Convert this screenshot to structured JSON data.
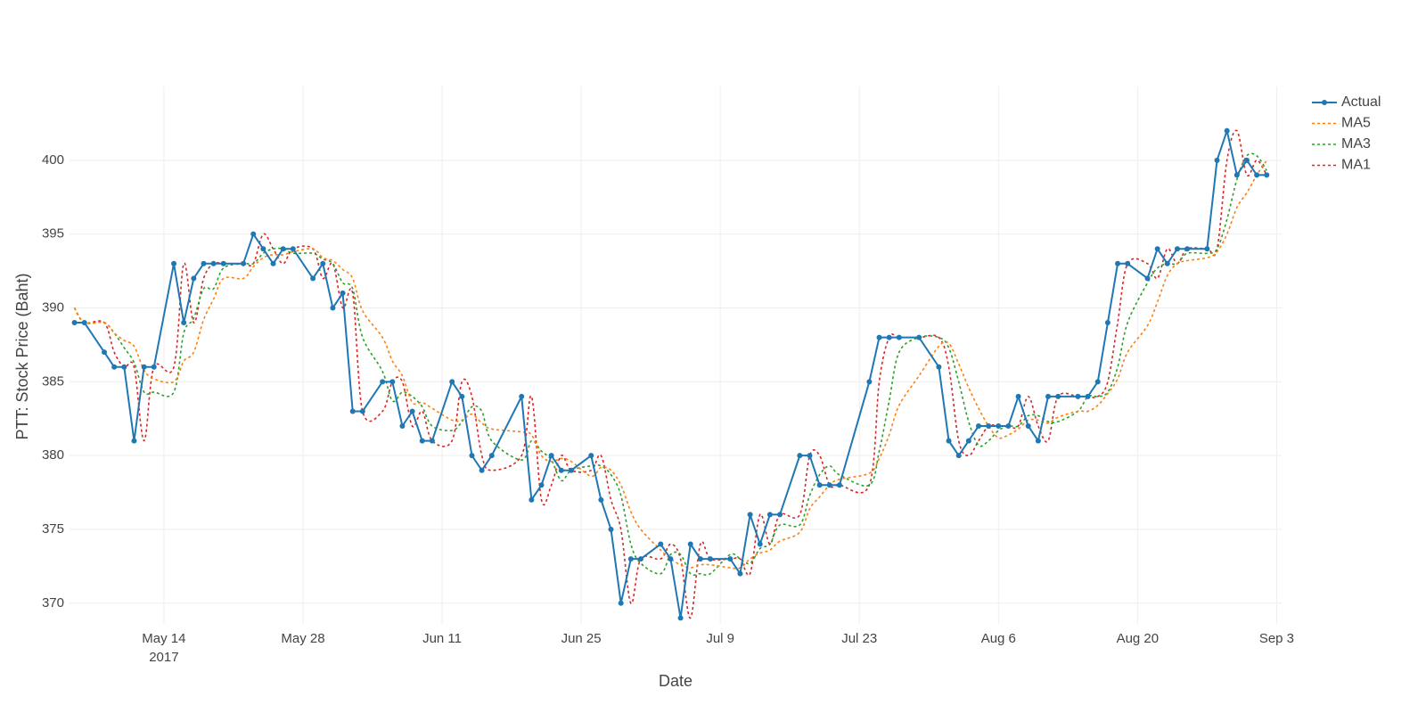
{
  "chart_data": {
    "type": "line",
    "xlabel": "Date",
    "ylabel": "PTT: Stock Price (Baht)",
    "x": [
      "2017-05-05",
      "2017-05-06",
      "2017-05-08",
      "2017-05-09",
      "2017-05-10",
      "2017-05-11",
      "2017-05-12",
      "2017-05-13",
      "2017-05-15",
      "2017-05-16",
      "2017-05-17",
      "2017-05-18",
      "2017-05-19",
      "2017-05-20",
      "2017-05-22",
      "2017-05-23",
      "2017-05-24",
      "2017-05-25",
      "2017-05-26",
      "2017-05-27",
      "2017-05-29",
      "2017-05-30",
      "2017-05-31",
      "2017-06-01",
      "2017-06-02",
      "2017-06-03",
      "2017-06-05",
      "2017-06-06",
      "2017-06-07",
      "2017-06-08",
      "2017-06-09",
      "2017-06-10",
      "2017-06-12",
      "2017-06-13",
      "2017-06-14",
      "2017-06-15",
      "2017-06-16",
      "2017-06-19",
      "2017-06-20",
      "2017-06-21",
      "2017-06-22",
      "2017-06-23",
      "2017-06-24",
      "2017-06-26",
      "2017-06-27",
      "2017-06-28",
      "2017-06-29",
      "2017-06-30",
      "2017-07-01",
      "2017-07-03",
      "2017-07-04",
      "2017-07-05",
      "2017-07-06",
      "2017-07-07",
      "2017-07-08",
      "2017-07-10",
      "2017-07-11",
      "2017-07-12",
      "2017-07-13",
      "2017-07-14",
      "2017-07-15",
      "2017-07-17",
      "2017-07-18",
      "2017-07-19",
      "2017-07-20",
      "2017-07-21",
      "2017-07-24",
      "2017-07-25",
      "2017-07-26",
      "2017-07-27",
      "2017-07-29",
      "2017-07-31",
      "2017-08-01",
      "2017-08-02",
      "2017-08-03",
      "2017-08-04",
      "2017-08-05",
      "2017-08-06",
      "2017-08-07",
      "2017-08-08",
      "2017-08-09",
      "2017-08-10",
      "2017-08-11",
      "2017-08-12",
      "2017-08-14",
      "2017-08-15",
      "2017-08-16",
      "2017-08-17",
      "2017-08-18",
      "2017-08-19",
      "2017-08-21",
      "2017-08-22",
      "2017-08-23",
      "2017-08-24",
      "2017-08-25",
      "2017-08-27",
      "2017-08-28",
      "2017-08-29",
      "2017-08-30",
      "2017-08-31",
      "2017-09-01",
      "2017-09-02"
    ],
    "series": [
      {
        "name": "Actual",
        "color": "#1f77b4",
        "markers": true,
        "dash": false,
        "values": [
          389,
          389,
          387,
          386,
          386,
          381,
          386,
          386,
          393,
          389,
          392,
          393,
          393,
          393,
          393,
          395,
          394,
          393,
          394,
          394,
          392,
          393,
          390,
          391,
          383,
          383,
          385,
          385,
          382,
          383,
          381,
          381,
          385,
          384,
          380,
          379,
          380,
          384,
          377,
          378,
          380,
          379,
          379,
          380,
          377,
          375,
          370,
          373,
          373,
          374,
          373,
          369,
          374,
          373,
          373,
          373,
          372,
          376,
          374,
          376,
          376,
          380,
          380,
          378,
          378,
          378,
          385,
          388,
          388,
          388,
          388,
          386,
          381,
          380,
          381,
          382,
          382,
          382,
          382,
          384,
          382,
          381,
          384,
          384,
          384,
          384,
          385,
          389,
          393,
          393,
          392,
          394,
          393,
          394,
          394,
          394,
          400,
          402,
          399,
          400,
          399,
          399
        ]
      },
      {
        "name": "MA5",
        "color": "#ff7f0e",
        "markers": false,
        "dash": true,
        "values": [
          390,
          389,
          389,
          388.3,
          387.8,
          387.4,
          385.8,
          385.2,
          385,
          386.4,
          387,
          389.2,
          390.6,
          392,
          392,
          392.8,
          393.4,
          393.6,
          393.6,
          393.8,
          394,
          393.4,
          393.2,
          392.6,
          392,
          389.8,
          388,
          386.4,
          385.4,
          383.6,
          383.6,
          383.2,
          382.4,
          382.4,
          382.8,
          382.2,
          381.8,
          381.6,
          381.4,
          380,
          379.6,
          379.8,
          379.6,
          378.6,
          379.2,
          379,
          378,
          376.2,
          375,
          373.6,
          373,
          372.6,
          372.4,
          372.6,
          372.6,
          372.4,
          372.4,
          373,
          373.4,
          373.6,
          374.2,
          374.8,
          376.4,
          377.2,
          378,
          378.4,
          378.8,
          379.8,
          381.4,
          383.4,
          385.4,
          387.4,
          387.6,
          386.2,
          384.6,
          383.2,
          382,
          381.2,
          381.4,
          381.8,
          382.4,
          382.4,
          382.2,
          382.6,
          383,
          383,
          383.4,
          384.2,
          385.2,
          387,
          388.8,
          390.4,
          392.2,
          393,
          393.2,
          393.4,
          393.8,
          395,
          396.8,
          397.8,
          399,
          400
        ]
      },
      {
        "name": "MA3",
        "color": "#2ca02c",
        "markers": false,
        "dash": true,
        "values": [
          390,
          389,
          389,
          388.3,
          387.3,
          386.3,
          384.3,
          384.3,
          384.3,
          388.3,
          389.3,
          391.3,
          391.3,
          392.7,
          393,
          393,
          393.7,
          394,
          394,
          393.7,
          393.7,
          393.3,
          393,
          391.7,
          391.3,
          388,
          385.7,
          383.7,
          384.3,
          384,
          383.3,
          382,
          381.7,
          382.3,
          383.3,
          383,
          381,
          379.7,
          381,
          380.3,
          379.7,
          378.3,
          379,
          379.3,
          379.3,
          378.7,
          377.3,
          374,
          372.7,
          372,
          373.3,
          373.3,
          372,
          372,
          372,
          373.3,
          373,
          372.7,
          373.7,
          374,
          375.3,
          375.3,
          377.3,
          378.7,
          379.3,
          378.7,
          378,
          380.3,
          383.7,
          387,
          388,
          388,
          387.3,
          385,
          382.3,
          380.7,
          381,
          381.7,
          382,
          382,
          382.7,
          382.7,
          382.3,
          382.3,
          383,
          384,
          384,
          384.3,
          386,
          389,
          391.7,
          392.7,
          393,
          393,
          393.7,
          393.7,
          394,
          396,
          398.7,
          400.3,
          400.3,
          399.3
        ]
      },
      {
        "name": "MA1",
        "color": "#d62728",
        "markers": false,
        "dash": true,
        "values": [
          390,
          389,
          389,
          387,
          386,
          386,
          381,
          386,
          386,
          393,
          389,
          392,
          393,
          393,
          393,
          393,
          395,
          394,
          393,
          394,
          394,
          392,
          393,
          390,
          391,
          383,
          383,
          385,
          385,
          382,
          383,
          381,
          381,
          385,
          384,
          380,
          379,
          380,
          384,
          377,
          378,
          380,
          379,
          379,
          380,
          377,
          375,
          370,
          373,
          373,
          374,
          373,
          369,
          374,
          373,
          373,
          373,
          372,
          376,
          374,
          376,
          376,
          380,
          380,
          378,
          378,
          378,
          385,
          388,
          388,
          388,
          388,
          386,
          381,
          380,
          381,
          382,
          382,
          382,
          382,
          384,
          382,
          381,
          384,
          384,
          384,
          384,
          385,
          389,
          393,
          393,
          392,
          394,
          393,
          394,
          394,
          394,
          400,
          402,
          399,
          400,
          399
        ]
      }
    ],
    "xlim": [
      "2017-05-04T12:00",
      "2017-09-03T12:00"
    ],
    "xticks": [
      {
        "value": "2017-05-14",
        "label": "May 14"
      },
      {
        "value": "2017-05-28",
        "label": "May 28"
      },
      {
        "value": "2017-06-11",
        "label": "Jun 11"
      },
      {
        "value": "2017-06-25",
        "label": "Jun 25"
      },
      {
        "value": "2017-07-09",
        "label": "Jul 9"
      },
      {
        "value": "2017-07-23",
        "label": "Jul 23"
      },
      {
        "value": "2017-08-06",
        "label": "Aug 6"
      },
      {
        "value": "2017-08-20",
        "label": "Aug 20"
      },
      {
        "value": "2017-09-03",
        "label": "Sep 3"
      }
    ],
    "x_year": "2017",
    "ylim": [
      368.6,
      405
    ],
    "yticks": [
      370,
      375,
      380,
      385,
      390,
      395,
      400
    ],
    "grid": true,
    "legend": "top-right",
    "smooth": true
  }
}
